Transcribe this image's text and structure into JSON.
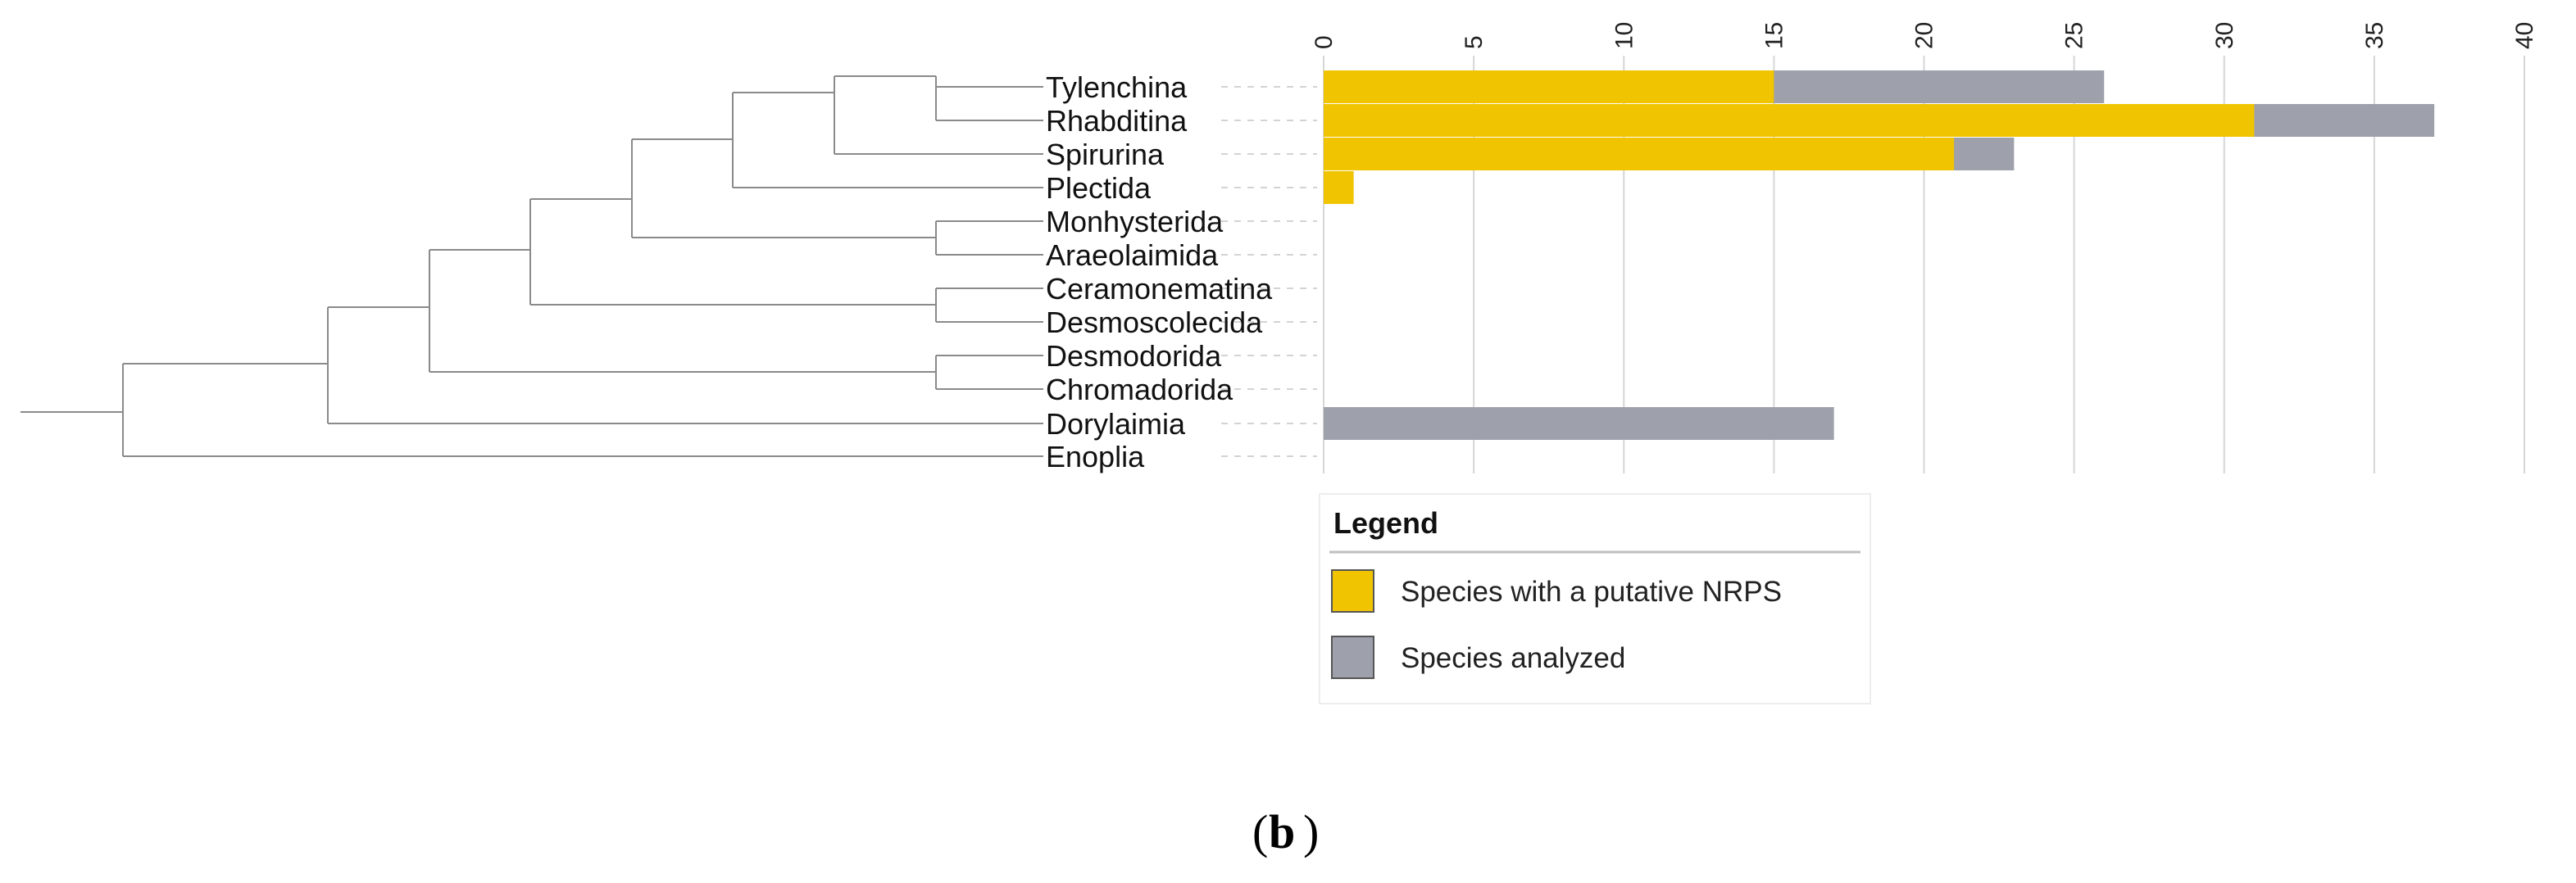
{
  "chart_data": {
    "type": "bar",
    "orientation": "horizontal",
    "categories": [
      "Tylenchina",
      "Rhabditina",
      "Spirurina",
      "Plectida",
      "Monhysterida",
      "Araeolaimida",
      "Ceramonematina",
      "Desmoscolecida",
      "Desmodorida",
      "Chromadorida",
      "Dorylaimia",
      "Enoplia"
    ],
    "series": [
      {
        "name": "Species analyzed",
        "values": [
          26,
          37,
          23,
          0,
          0,
          0,
          0,
          0,
          0,
          0,
          17,
          0
        ]
      },
      {
        "name": "Species with a putative NRPS",
        "values": [
          15,
          31,
          21,
          1,
          0,
          0,
          0,
          0,
          0,
          0,
          0,
          0
        ]
      }
    ],
    "x_ticks": [
      0,
      5,
      10,
      15,
      20,
      25,
      30,
      35,
      40
    ],
    "xlim": [
      0,
      40
    ],
    "title": "",
    "xlabel": "",
    "ylabel": "",
    "grid": true,
    "legend_position": "bottom-center"
  },
  "legend": {
    "title": "Legend",
    "items": [
      {
        "label": "Species with a putative NRPS",
        "color": "#f0c400"
      },
      {
        "label": "Species analyzed",
        "color": "#9ea1ab"
      }
    ]
  },
  "colors": {
    "nrps": "#f0c400",
    "analyzed": "#9ea1ab"
  },
  "panel": {
    "open_paren": "(",
    "label": "b",
    "close_paren": ")"
  }
}
